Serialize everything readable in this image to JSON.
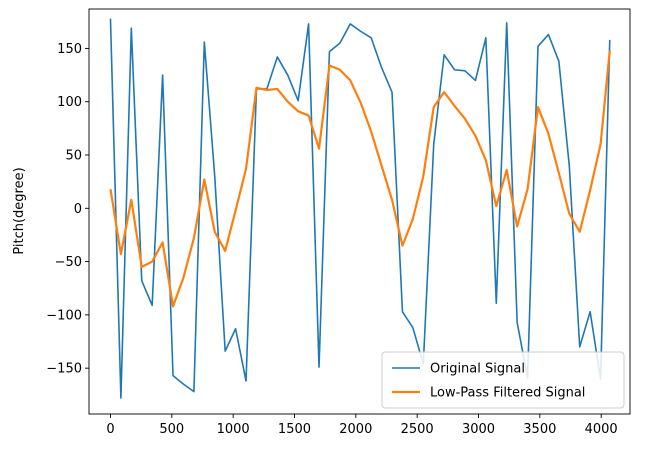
{
  "chart_data": {
    "type": "line",
    "title": "",
    "xlabel": "",
    "ylabel": "Pitch(degree)",
    "xlim": [
      -175,
      4235
    ],
    "ylim": [
      -193,
      187
    ],
    "xticks": [
      0,
      500,
      1000,
      1500,
      2000,
      2500,
      3000,
      3500,
      4000
    ],
    "xtick_labels": [
      "0",
      "500",
      "1000",
      "1500",
      "2000",
      "2500",
      "3000",
      "3500",
      "4000"
    ],
    "yticks": [
      -150,
      -100,
      -50,
      0,
      50,
      100,
      150
    ],
    "ytick_labels": [
      "−150",
      "−100",
      "−50",
      "0",
      "50",
      "100",
      "150"
    ],
    "grid": false,
    "legend_position": "lower-right",
    "series": [
      {
        "name": "Original Signal",
        "color": "#1f77b4",
        "x": [
          0,
          85,
          170,
          255,
          340,
          425,
          510,
          595,
          680,
          765,
          850,
          935,
          1020,
          1105,
          1190,
          1275,
          1360,
          1445,
          1530,
          1615,
          1700,
          1785,
          1870,
          1955,
          2040,
          2125,
          2210,
          2295,
          2380,
          2465,
          2550,
          2635,
          2720,
          2805,
          2890,
          2975,
          3060,
          3145,
          3230,
          3315,
          3400,
          3485,
          3570,
          3655,
          3740,
          3825,
          3910,
          3995,
          4070
        ],
        "y": [
          178,
          -178,
          169,
          -68,
          -91,
          125,
          -157,
          -165,
          -172,
          156,
          30,
          -134,
          -113,
          -162,
          112,
          112,
          142,
          125,
          101,
          173,
          -149,
          147,
          155,
          173,
          166,
          160,
          132,
          109,
          -97,
          -112,
          -146,
          60,
          144,
          130,
          129,
          120,
          160,
          -89,
          174,
          -107,
          -159,
          152,
          163,
          138,
          40,
          -130,
          -97,
          -160,
          158
        ]
      },
      {
        "name": "Low-Pass Filtered Signal",
        "color": "#ff7f0e",
        "x": [
          0,
          85,
          170,
          255,
          340,
          425,
          510,
          595,
          680,
          765,
          850,
          935,
          1020,
          1105,
          1190,
          1275,
          1360,
          1445,
          1530,
          1615,
          1700,
          1785,
          1870,
          1955,
          2040,
          2125,
          2210,
          2295,
          2380,
          2465,
          2550,
          2635,
          2720,
          2805,
          2890,
          2975,
          3060,
          3145,
          3230,
          3315,
          3400,
          3485,
          3570,
          3655,
          3740,
          3825,
          3910,
          3995,
          4070
        ],
        "y": [
          18,
          -43,
          8,
          -55,
          -50,
          -32,
          -92,
          -65,
          -28,
          27,
          -22,
          -40,
          -2,
          37,
          113,
          111,
          112,
          100,
          91,
          87,
          56,
          134,
          130,
          120,
          99,
          72,
          40,
          8,
          -35,
          -10,
          30,
          95,
          109,
          96,
          84,
          68,
          45,
          2,
          36,
          -17,
          18,
          95,
          70,
          33,
          -5,
          -22,
          17,
          60,
          148
        ]
      }
    ]
  }
}
